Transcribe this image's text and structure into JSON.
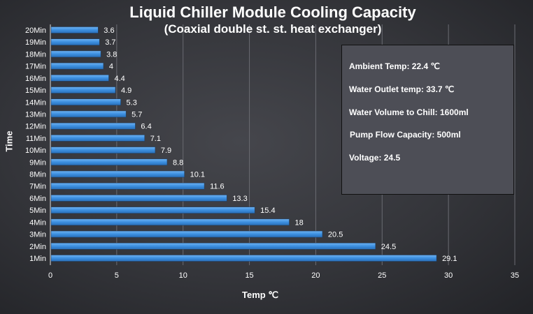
{
  "chart_data": {
    "type": "bar",
    "orientation": "horizontal",
    "title": "Liquid Chiller Module Cooling Capacity",
    "subtitle": "(Coaxial double st. st. heat exchanger)",
    "xlabel": "Temp ℃",
    "ylabel": "Time",
    "categories": [
      "1Min",
      "2Min",
      "3Min",
      "4Min",
      "5Min",
      "6Min",
      "7Min",
      "8Min",
      "9Min",
      "10Min",
      "11Min",
      "12Min",
      "13Min",
      "14Min",
      "15Min",
      "16Min",
      "17Min",
      "18Min",
      "19Min",
      "20Min"
    ],
    "values": [
      29.1,
      24.5,
      20.5,
      18,
      15.4,
      13.3,
      11.6,
      10.1,
      8.8,
      7.9,
      7.1,
      6.4,
      5.7,
      5.3,
      4.9,
      4.4,
      4,
      3.8,
      3.7,
      3.6
    ],
    "xlim": [
      0,
      35
    ],
    "xticks": [
      0,
      5,
      10,
      15,
      20,
      25,
      30,
      35
    ],
    "grid": true,
    "bar_color": "#3c8fe0",
    "data_labels": true
  },
  "info_box": [
    "Ambient Temp: 22.4 ℃",
    "Water Outlet temp: 33.7 ℃",
    "Water Volume to Chill: 1600ml",
    "Pump Flow Capacity: 500ml",
    "Voltage: 24.5"
  ]
}
